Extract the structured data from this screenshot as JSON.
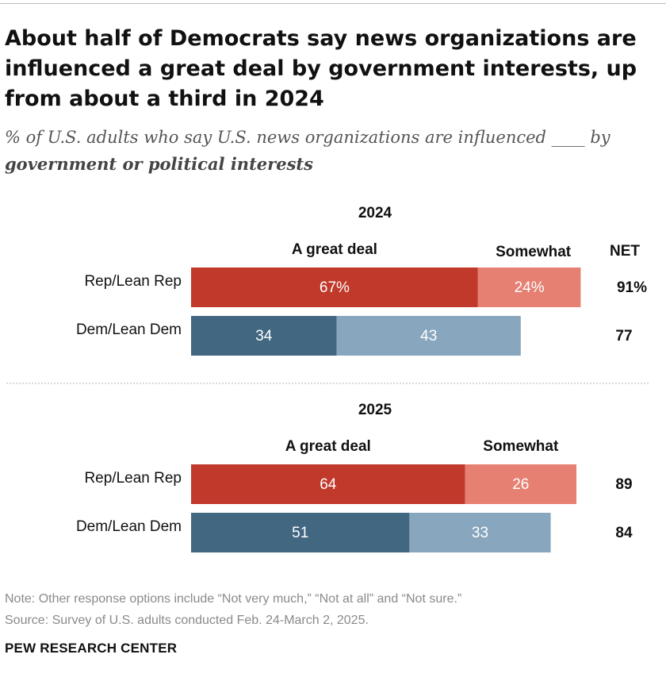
{
  "title": "About half of Democrats say news organizations are influenced a great deal by government interests, up from about a third in 2024",
  "subtitle": {
    "text": "% of U.S. adults who say U.S. news organizations are influenced ____ by",
    "emphasis": "government or political interests"
  },
  "colors": {
    "rep_great_deal": "#c0392b",
    "rep_somewhat": "#e58072",
    "dem_great_deal": "#426781",
    "dem_somewhat": "#88a7bf"
  },
  "chart_data": {
    "type": "bar",
    "stacked": true,
    "orientation": "horizontal",
    "xlim": [
      0,
      100
    ],
    "series_names": [
      "A great deal",
      "Somewhat"
    ],
    "net_label": "NET",
    "panels": [
      {
        "year": "2024",
        "rows": [
          {
            "category": "Rep/Lean Rep",
            "party": "rep",
            "great_deal": 67,
            "somewhat": 24,
            "net": 91,
            "great_deal_label": "67%",
            "somewhat_label": "24%",
            "net_label": "91%"
          },
          {
            "category": "Dem/Lean Dem",
            "party": "dem",
            "great_deal": 34,
            "somewhat": 43,
            "net": 77,
            "great_deal_label": "34",
            "somewhat_label": "43",
            "net_label": "77"
          }
        ]
      },
      {
        "year": "2025",
        "rows": [
          {
            "category": "Rep/Lean Rep",
            "party": "rep",
            "great_deal": 64,
            "somewhat": 26,
            "net": 89,
            "great_deal_label": "64",
            "somewhat_label": "26",
            "net_label": "89"
          },
          {
            "category": "Dem/Lean Dem",
            "party": "dem",
            "great_deal": 51,
            "somewhat": 33,
            "net": 84,
            "great_deal_label": "51",
            "somewhat_label": "33",
            "net_label": "84"
          }
        ]
      }
    ]
  },
  "note": "Note: Other response options include “Not very much,” “Not at all” and “Not sure.”",
  "source": "Source: Survey of U.S. adults conducted Feb. 24-March 2, 2025.",
  "brand": "PEW RESEARCH CENTER"
}
